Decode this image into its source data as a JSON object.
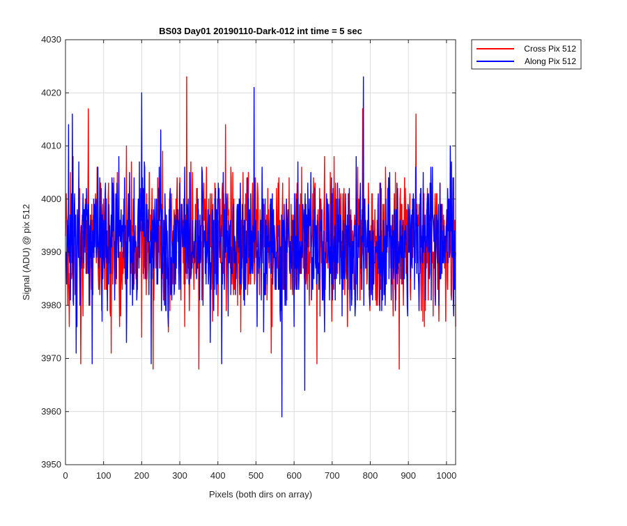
{
  "chart_data": {
    "type": "line",
    "title": "BS03 Day01 20190110-Dark-012 int time = 5 sec",
    "xlabel": "Pixels (both dirs on array)",
    "ylabel": "Signal (ADU) @ pix 512",
    "xlim": [
      0,
      1024
    ],
    "ylim": [
      3950,
      4030
    ],
    "xticks": [
      0,
      100,
      200,
      300,
      400,
      500,
      600,
      700,
      800,
      900,
      1000
    ],
    "yticks": [
      3950,
      3960,
      3970,
      3980,
      3990,
      4000,
      4010,
      4020,
      4030
    ],
    "grid": true,
    "legend_position": "outside-top-right",
    "noise_summary": {
      "mean": 3992,
      "typical_min": 3976,
      "typical_max": 4008
    },
    "series": [
      {
        "name": "Cross Pix 512",
        "color": "#ff0000",
        "sampled_x": [
          0,
          10,
          20,
          30,
          40,
          50,
          60,
          80,
          100,
          120,
          140,
          160,
          180,
          200,
          220,
          230,
          250,
          270,
          290,
          318,
          330,
          350,
          370,
          400,
          420,
          440,
          460,
          480,
          500,
          520,
          540,
          560,
          580,
          600,
          620,
          640,
          660,
          680,
          700,
          720,
          740,
          760,
          780,
          800,
          820,
          840,
          860,
          876,
          900,
          920,
          940,
          960,
          980,
          1000,
          1024
        ],
        "values": [
          3993,
          3976,
          4008,
          3985,
          3969,
          3998,
          4017,
          3990,
          4000,
          3971,
          3995,
          4010,
          3984,
          3974,
          4005,
          3968,
          3993,
          3975,
          4000,
          4023,
          3986,
          3968,
          4006,
          3978,
          4014,
          3985,
          3975,
          4005,
          3989,
          3998,
          3971,
          4004,
          3982,
          3991,
          4006,
          3980,
          3969,
          4008,
          3987,
          4000,
          3976,
          3993,
          4017,
          3982,
          3986,
          4006,
          3978,
          3968,
          3995,
          4016,
          3988,
          4003,
          3977,
          3996,
          3976
        ]
      },
      {
        "name": "Along Pix 512",
        "color": "#0000ff",
        "sampled_x": [
          0,
          8,
          18,
          28,
          38,
          55,
          70,
          90,
          110,
          140,
          160,
          180,
          200,
          210,
          225,
          250,
          270,
          300,
          320,
          340,
          360,
          380,
          410,
          440,
          470,
          495,
          520,
          550,
          568,
          600,
          628,
          650,
          680,
          700,
          720,
          740,
          760,
          782,
          800,
          830,
          850,
          880,
          900,
          930,
          950,
          970,
          990,
          1010,
          1024
        ],
        "values": [
          3990,
          4014,
          4016,
          3971,
          3980,
          4002,
          3969,
          4004,
          3979,
          4008,
          3973,
          4004,
          4020,
          3985,
          3969,
          4013,
          3976,
          4003,
          3986,
          3994,
          4000,
          3973,
          3969,
          3998,
          3980,
          4021,
          3975,
          3984,
          3959,
          3976,
          3964,
          3996,
          3975,
          4001,
          3984,
          3997,
          3978,
          4023,
          3994,
          3979,
          3993,
          3985,
          3998,
          3986,
          4001,
          3982,
          3988,
          4010,
          3990
        ]
      }
    ]
  }
}
